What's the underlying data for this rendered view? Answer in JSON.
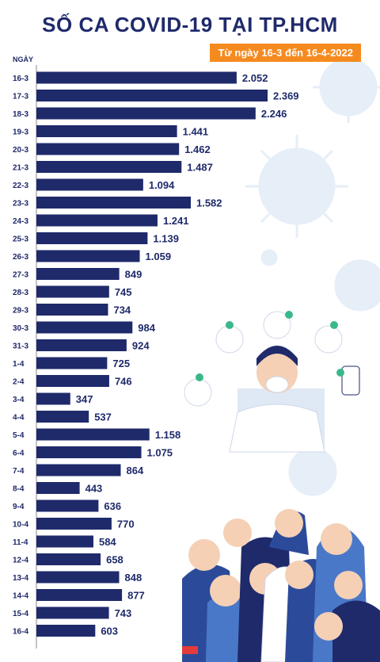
{
  "title": "SỐ CA COVID-19 TẠI TP.HCM",
  "subtitle": "Từ ngày 16-3 đến 16-4-2022",
  "y_axis_title": "NGÀY",
  "colors": {
    "bar": "#1f2a6b",
    "accent": "#f58a1f",
    "text": "#1f2a6b",
    "virus": "#e6eef8"
  },
  "chart_data": {
    "type": "bar",
    "orientation": "horizontal",
    "title": "SỐ CA COVID-19 TẠI TP.HCM",
    "subtitle": "Từ ngày 16-3 đến 16-4-2022",
    "ylabel": "NGÀY",
    "categories": [
      "16-3",
      "17-3",
      "18-3",
      "19-3",
      "20-3",
      "21-3",
      "22-3",
      "23-3",
      "24-3",
      "25-3",
      "26-3",
      "27-3",
      "28-3",
      "29-3",
      "30-3",
      "31-3",
      "1-4",
      "2-4",
      "3-4",
      "4-4",
      "5-4",
      "6-4",
      "7-4",
      "8-4",
      "9-4",
      "10-4",
      "11-4",
      "12-4",
      "13-4",
      "14-4",
      "15-4",
      "16-4"
    ],
    "values": [
      2052,
      2369,
      2246,
      1441,
      1462,
      1487,
      1094,
      1582,
      1241,
      1139,
      1059,
      849,
      745,
      734,
      984,
      924,
      725,
      746,
      347,
      537,
      1158,
      1075,
      864,
      443,
      636,
      770,
      584,
      658,
      848,
      877,
      743,
      603
    ],
    "value_labels": [
      "2.052",
      "2.369",
      "2.246",
      "1.441",
      "1.462",
      "1.487",
      "1.094",
      "1.582",
      "1.241",
      "1.139",
      "1.059",
      "849",
      "745",
      "734",
      "984",
      "924",
      "725",
      "746",
      "347",
      "537",
      "1.158",
      "1.075",
      "864",
      "443",
      "636",
      "770",
      "584",
      "658",
      "848",
      "877",
      "743",
      "603"
    ],
    "xlim": [
      0,
      2369
    ],
    "grid": false,
    "legend": "none"
  }
}
